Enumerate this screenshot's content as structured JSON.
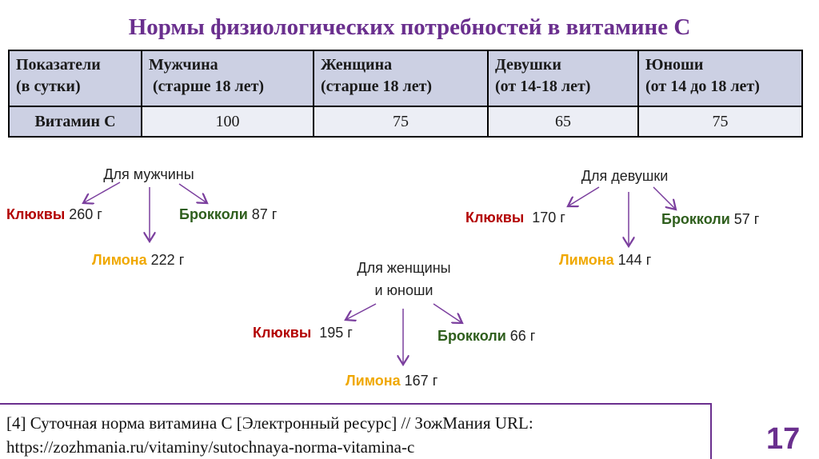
{
  "title": "Нормы физиологических потребностей в витамине С",
  "table": {
    "headers": [
      [
        "Показатели",
        "(в сутки)"
      ],
      [
        "Мужчина",
        " (старше 18 лет)"
      ],
      [
        "Женщина",
        "(старше 18 лет)"
      ],
      [
        "Девушки",
        "(от 14-18 лет)"
      ],
      [
        "Юноши",
        "(от 14 до 18 лет)"
      ]
    ],
    "row_label": "Витамин С",
    "values": [
      "100",
      "75",
      "65",
      "75"
    ]
  },
  "groups": {
    "men": {
      "heading": "Для мужчины",
      "cranberry": "Клюквы",
      "cranberry_amount": " 260 г",
      "broccoli": "Брокколи",
      "broccoli_amount": " 87 г",
      "lemon": "Лимона",
      "lemon_amount": " 222 г"
    },
    "girls": {
      "heading": "Для девушки",
      "cranberry": "Клюквы",
      "cranberry_amount": "  170 г",
      "broccoli": "Брокколи",
      "broccoli_amount": " 57 г",
      "lemon": "Лимона",
      "lemon_amount": " 144 г"
    },
    "women": {
      "heading_line1": "Для женщины",
      "heading_line2": "и юноши",
      "cranberry": "Клюквы",
      "cranberry_amount": "  195 г",
      "broccoli": "Брокколи",
      "broccoli_amount": " 66 г",
      "lemon": "Лимона",
      "lemon_amount": " 167 г"
    }
  },
  "reference": {
    "line1": "[4] Суточная норма витамина С [Электронный ресурс] // ЗожМания URL:",
    "line2": "https://zozhmania.ru/vitaminy/sutochnaya-norma-vitamina-c"
  },
  "page_number": "17",
  "colors": {
    "title": "#6a2f8e",
    "cranberry": "#b30000",
    "broccoli": "#2e5e1c",
    "lemon": "#f0a800",
    "arrow": "#7b3f9e"
  }
}
